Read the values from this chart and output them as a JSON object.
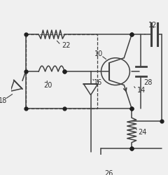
{
  "bg_color": "#f0f0f0",
  "line_color": "#404040",
  "dot_color": "#202020",
  "label_color": "#303030",
  "figsize": [
    2.4,
    2.5
  ],
  "dpi": 100
}
